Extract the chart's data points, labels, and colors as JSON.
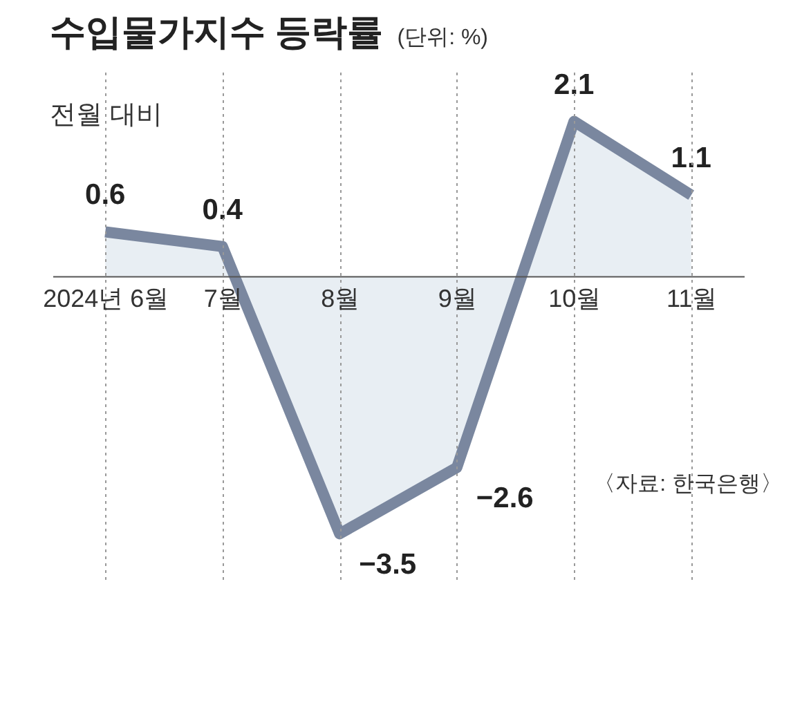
{
  "chart_data": {
    "type": "area",
    "title": "수입물가지수 등락률",
    "subtitle": "(단위: %)",
    "annotations": [
      "전월 대비",
      "〈자료: 한국은행〉"
    ],
    "categories": [
      "2024년 6월",
      "7월",
      "8월",
      "9월",
      "10월",
      "11월"
    ],
    "series": [
      {
        "color": "#7a879f",
        "values": [
          0.6,
          0.4,
          -3.5,
          -2.6,
          2.1,
          1.1
        ]
      }
    ],
    "data_labels": true,
    "grid": "x"
  }
}
